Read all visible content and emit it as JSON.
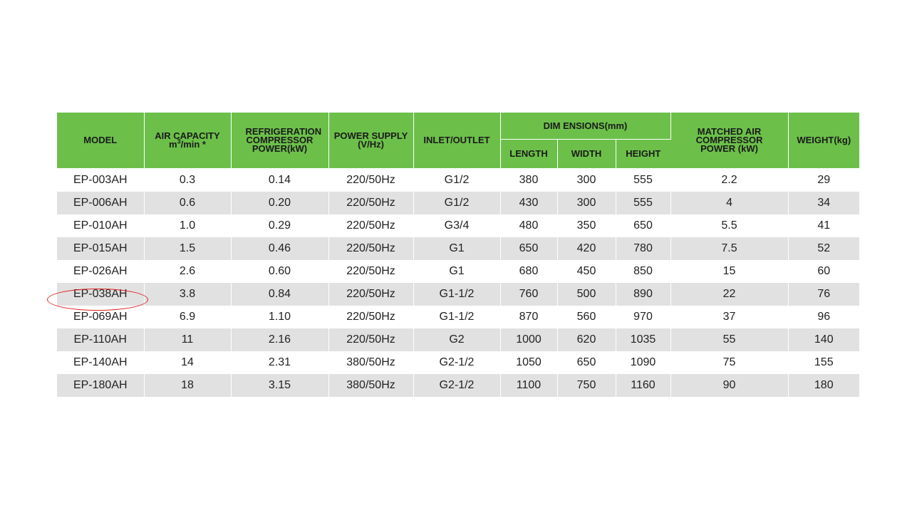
{
  "table": {
    "headers": {
      "model": "MODEL",
      "air_capacity": "AIR CAPACITY",
      "air_capacity_unit_pre": "m",
      "air_capacity_unit_sup": "3",
      "air_capacity_unit_post": "/min *",
      "refrigeration_power": "REFRIGERATION COMPRESSOR POWER(kW)",
      "power_supply": "POWER SUPPLY",
      "power_supply_unit": "(V/Hz)",
      "inlet_outlet": "INLET/OUTLET",
      "dimensions": "DIM ENSIONS(mm)",
      "length": "LENGTH",
      "width": "WIDTH",
      "height": "HEIGHT",
      "matched_power": "MATCHED AIR COMPRESSOR POWER (kW)",
      "weight": "WEIGHT(kg)"
    },
    "rows": [
      [
        "EP-003AH",
        "0.3",
        "0.14",
        "220/50Hz",
        "G1/2",
        "380",
        "300",
        "555",
        "2.2",
        "29"
      ],
      [
        "EP-006AH",
        "0.6",
        "0.20",
        "220/50Hz",
        "G1/2",
        "430",
        "300",
        "555",
        "4",
        "34"
      ],
      [
        "EP-010AH",
        "1.0",
        "0.29",
        "220/50Hz",
        "G3/4",
        "480",
        "350",
        "650",
        "5.5",
        "41"
      ],
      [
        "EP-015AH",
        "1.5",
        "0.46",
        "220/50Hz",
        "G1",
        "650",
        "420",
        "780",
        "7.5",
        "52"
      ],
      [
        "EP-026AH",
        "2.6",
        "0.60",
        "220/50Hz",
        "G1",
        "680",
        "450",
        "850",
        "15",
        "60"
      ],
      [
        "EP-038AH",
        "3.8",
        "0.84",
        "220/50Hz",
        "G1-1/2",
        "760",
        "500",
        "890",
        "22",
        "76"
      ],
      [
        "EP-069AH",
        "6.9",
        "1.10",
        "220/50Hz",
        "G1-1/2",
        "870",
        "560",
        "970",
        "37",
        "96"
      ],
      [
        "EP-110AH",
        "11",
        "2.16",
        "220/50Hz",
        "G2",
        "1000",
        "620",
        "1035",
        "55",
        "140"
      ],
      [
        "EP-140AH",
        "14",
        "2.31",
        "380/50Hz",
        "G2-1/2",
        "1050",
        "650",
        "1090",
        "75",
        "155"
      ],
      [
        "EP-180AH",
        "18",
        "3.15",
        "380/50Hz",
        "G2-1/2",
        "1100",
        "750",
        "1160",
        "90",
        "180"
      ]
    ],
    "highlighted_model": "EP-038AH"
  },
  "colors": {
    "header_green": "#6cc04a",
    "row_alt_gray": "#e1e1e1",
    "annotation_red": "#e02020"
  }
}
